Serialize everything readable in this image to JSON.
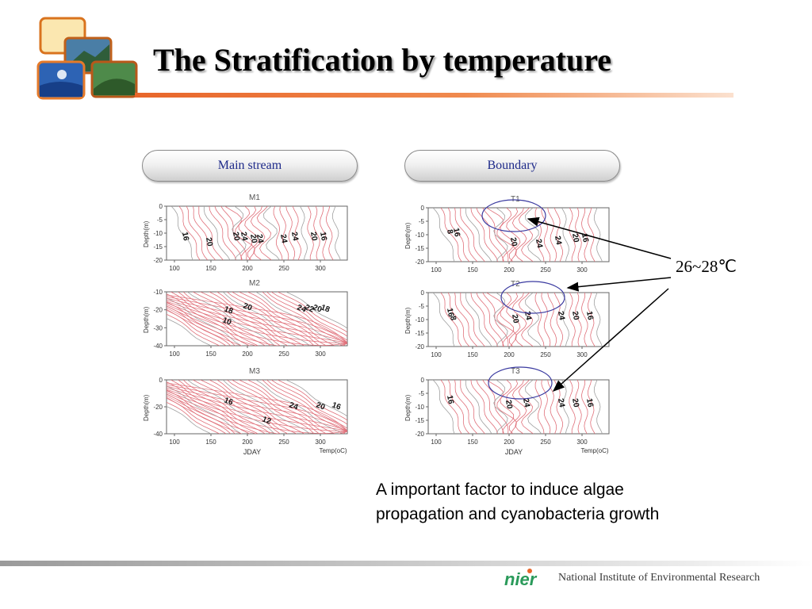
{
  "title": "The Stratification by temperature",
  "panels": {
    "left_label": "Main stream",
    "right_label": "Boundary"
  },
  "plots": {
    "M1": {
      "title": "M1",
      "ylabel": "Depth(m)",
      "xticks": [
        "100",
        "150",
        "200",
        "250",
        "300"
      ],
      "yticks": [
        "0",
        "-5",
        "-10",
        "-15",
        "-20"
      ],
      "contour_labels": [
        "16",
        "20",
        "20",
        "24",
        "20",
        "24",
        "24",
        "24",
        "20",
        "16"
      ]
    },
    "M2": {
      "title": "M2",
      "ylabel": "Depth(m)",
      "xticks": [
        "100",
        "150",
        "200",
        "250",
        "300"
      ],
      "yticks": [
        "-10",
        "-20",
        "-30",
        "-40"
      ],
      "contour_labels": [
        "18",
        "10",
        "20",
        "24",
        "22",
        "20",
        "18"
      ]
    },
    "M3": {
      "title": "M3",
      "ylabel": "Depth(m)",
      "xticks": [
        "100",
        "150",
        "200",
        "250",
        "300"
      ],
      "yticks": [
        "0",
        "-20",
        "-40"
      ],
      "contour_labels": [
        "16",
        "24",
        "20",
        "16",
        "12"
      ],
      "xlabel": "JDAY",
      "unit_label": "Temp(oC)"
    },
    "T1": {
      "title": "T1",
      "ylabel": "Depth(m)",
      "xticks": [
        "100",
        "150",
        "200",
        "250",
        "300"
      ],
      "yticks": [
        "0",
        "-5",
        "-10",
        "-15",
        "-20"
      ],
      "contour_labels": [
        "8",
        "16",
        "20",
        "24",
        "24",
        "20",
        "16"
      ]
    },
    "T2": {
      "title": "T2",
      "ylabel": "Depth(m)",
      "xticks": [
        "100",
        "150",
        "200",
        "250",
        "300"
      ],
      "yticks": [
        "0",
        "-5",
        "-10",
        "-15",
        "-20"
      ],
      "contour_labels": [
        "16",
        "8",
        "20",
        "24",
        "24",
        "20",
        "16"
      ]
    },
    "T3": {
      "title": "T3",
      "ylabel": "Depth(m)",
      "xticks": [
        "100",
        "150",
        "200",
        "250",
        "300"
      ],
      "yticks": [
        "0",
        "-5",
        "-10",
        "-15",
        "-20"
      ],
      "contour_labels": [
        "16",
        "20",
        "24",
        "24",
        "20",
        "16"
      ],
      "xlabel": "JDAY",
      "unit_label": "Temp(oC)"
    }
  },
  "annotation": {
    "label": "26~28℃"
  },
  "caption": {
    "line1": "A important factor to induce algae",
    "line2": "propagation and cyanobacteria growth"
  },
  "footer": {
    "logo_text": "nier",
    "org_name": "National Institute of Environmental Research"
  },
  "colors": {
    "contour": "#e0707a",
    "contour_grey": "#a0a0a0",
    "ellipse": "#3a3aa0",
    "accent": "#e8662a",
    "pill_text": "#1e2a8a"
  }
}
